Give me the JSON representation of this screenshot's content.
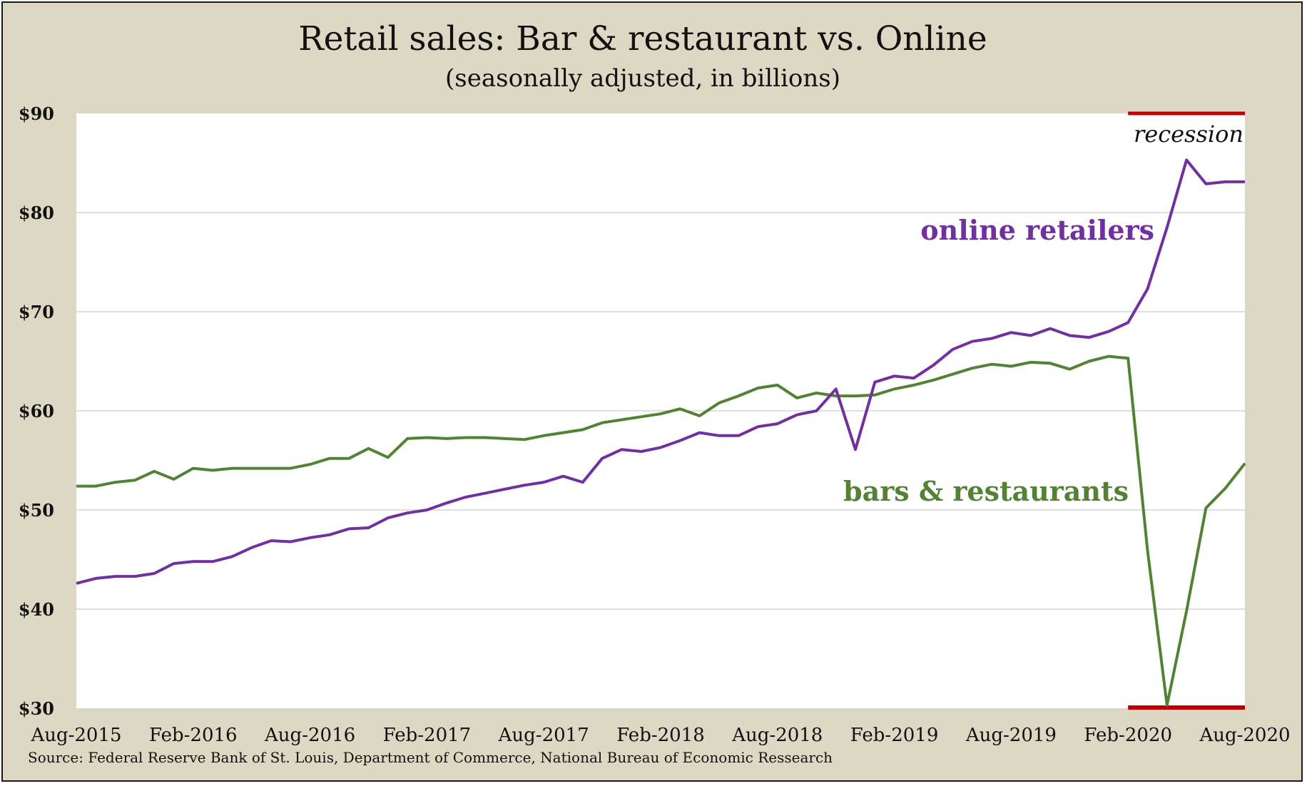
{
  "chart_data": {
    "type": "line",
    "title": "Retail sales: Bar & restaurant vs. Online",
    "subtitle": "(seasonally adjusted, in billions)",
    "source": "Source: Federal Reserve Bank of St. Louis, Department of Commerce, National Bureau of Economic Ressearch",
    "x_tick_labels": [
      "Aug-2015",
      "Feb-2016",
      "Aug-2016",
      "Feb-2017",
      "Aug-2017",
      "Feb-2018",
      "Aug-2018",
      "Feb-2019",
      "Aug-2019",
      "Feb-2020",
      "Aug-2020"
    ],
    "y_ticks": [
      30,
      40,
      50,
      60,
      70,
      80,
      90
    ],
    "y_tick_labels": [
      "$30",
      "$40",
      "$50",
      "$60",
      "$70",
      "$80",
      "$90"
    ],
    "ylim": [
      30,
      90
    ],
    "x_range": [
      "2015-08",
      "2020-08"
    ],
    "grid": true,
    "recession": {
      "label": "recession",
      "start": "2020-02",
      "end": "2020-08",
      "color": "#c00000"
    },
    "series": [
      {
        "name": "online retailers",
        "color": "#7030a0",
        "x": [
          "2015-08",
          "2015-09",
          "2015-10",
          "2015-11",
          "2015-12",
          "2016-01",
          "2016-02",
          "2016-03",
          "2016-04",
          "2016-05",
          "2016-06",
          "2016-07",
          "2016-08",
          "2016-09",
          "2016-10",
          "2016-11",
          "2016-12",
          "2017-01",
          "2017-02",
          "2017-03",
          "2017-04",
          "2017-05",
          "2017-06",
          "2017-07",
          "2017-08",
          "2017-09",
          "2017-10",
          "2017-11",
          "2017-12",
          "2018-01",
          "2018-02",
          "2018-03",
          "2018-04",
          "2018-05",
          "2018-06",
          "2018-07",
          "2018-08",
          "2018-09",
          "2018-10",
          "2018-11",
          "2018-12",
          "2019-01",
          "2019-02",
          "2019-03",
          "2019-04",
          "2019-05",
          "2019-06",
          "2019-07",
          "2019-08",
          "2019-09",
          "2019-10",
          "2019-11",
          "2019-12",
          "2020-01",
          "2020-02",
          "2020-03",
          "2020-04",
          "2020-05",
          "2020-06",
          "2020-07",
          "2020-08"
        ],
        "values": [
          42.6,
          43.1,
          43.3,
          43.3,
          43.6,
          44.6,
          44.8,
          44.8,
          45.3,
          46.2,
          46.9,
          46.8,
          47.2,
          47.5,
          48.1,
          48.2,
          49.2,
          49.7,
          50.0,
          50.7,
          51.3,
          51.7,
          52.1,
          52.5,
          52.8,
          53.4,
          52.8,
          55.2,
          56.1,
          55.9,
          56.3,
          57.0,
          57.8,
          57.5,
          57.5,
          58.4,
          58.7,
          59.6,
          60.0,
          62.2,
          56.1,
          62.9,
          63.5,
          63.3,
          64.6,
          66.2,
          67.0,
          67.3,
          67.9,
          67.6,
          68.3,
          67.6,
          67.4,
          68.0,
          68.9,
          72.3,
          78.5,
          85.3,
          82.9,
          83.1,
          83.1
        ]
      },
      {
        "name": "bars & restaurants",
        "color": "#548235",
        "x": [
          "2015-08",
          "2015-09",
          "2015-10",
          "2015-11",
          "2015-12",
          "2016-01",
          "2016-02",
          "2016-03",
          "2016-04",
          "2016-05",
          "2016-06",
          "2016-07",
          "2016-08",
          "2016-09",
          "2016-10",
          "2016-11",
          "2016-12",
          "2017-01",
          "2017-02",
          "2017-03",
          "2017-04",
          "2017-05",
          "2017-06",
          "2017-07",
          "2017-08",
          "2017-09",
          "2017-10",
          "2017-11",
          "2017-12",
          "2018-01",
          "2018-02",
          "2018-03",
          "2018-04",
          "2018-05",
          "2018-06",
          "2018-07",
          "2018-08",
          "2018-09",
          "2018-10",
          "2018-11",
          "2018-12",
          "2019-01",
          "2019-02",
          "2019-03",
          "2019-04",
          "2019-05",
          "2019-06",
          "2019-07",
          "2019-08",
          "2019-09",
          "2019-10",
          "2019-11",
          "2019-12",
          "2020-01",
          "2020-02",
          "2020-03",
          "2020-04",
          "2020-05",
          "2020-06",
          "2020-07",
          "2020-08"
        ],
        "values": [
          52.4,
          52.4,
          52.8,
          53.0,
          53.9,
          53.1,
          54.2,
          54.0,
          54.2,
          54.2,
          54.2,
          54.2,
          54.6,
          55.2,
          55.2,
          56.2,
          55.3,
          57.2,
          57.3,
          57.2,
          57.3,
          57.3,
          57.2,
          57.1,
          57.5,
          57.8,
          58.1,
          58.8,
          59.1,
          59.4,
          59.7,
          60.2,
          59.5,
          60.8,
          61.5,
          62.3,
          62.6,
          61.3,
          61.8,
          61.5,
          61.5,
          61.6,
          62.2,
          62.6,
          63.1,
          63.7,
          64.3,
          64.7,
          64.5,
          64.9,
          64.8,
          64.2,
          65.0,
          65.5,
          65.3,
          45.9,
          30.3,
          39.8,
          50.2,
          52.2,
          54.7
        ]
      }
    ]
  }
}
